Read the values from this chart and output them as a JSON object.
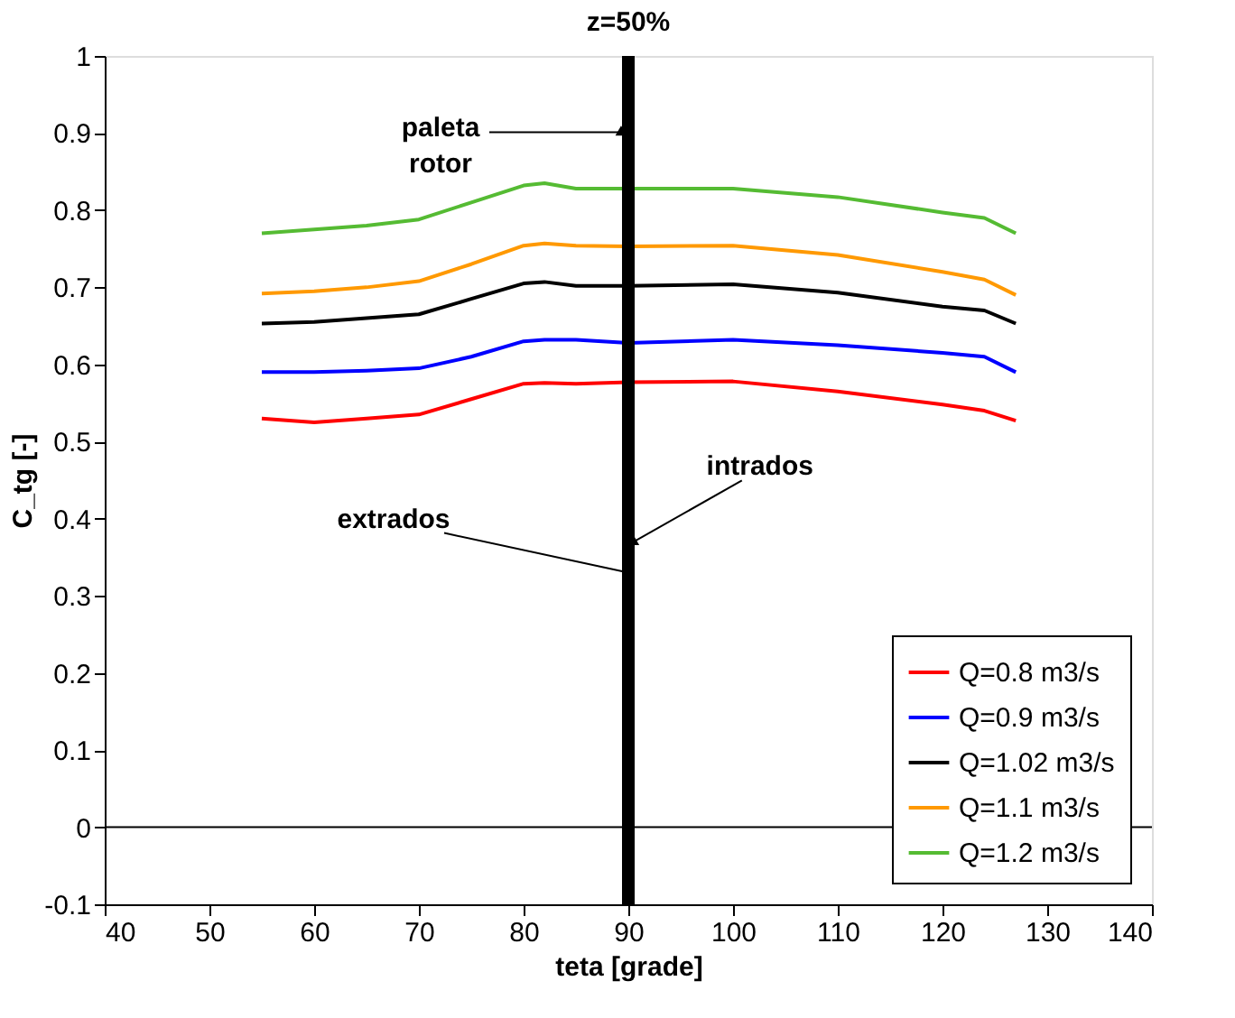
{
  "chart_data": {
    "type": "line",
    "title": "z=50%",
    "xlabel": "teta [grade]",
    "ylabel": "C_tg [-]",
    "xlim": [
      40,
      140
    ],
    "xticks": [
      40,
      50,
      60,
      70,
      80,
      90,
      100,
      110,
      120,
      130,
      140
    ],
    "ylim": [
      -0.1,
      1
    ],
    "yticks": [
      -0.1,
      {
        "value": 0,
        "label": "0"
      },
      0.1,
      0.2,
      0.3,
      0.4,
      0.5,
      0.6,
      0.7,
      0.8,
      0.9,
      {
        "value": 1,
        "label": "1"
      }
    ],
    "grid": false,
    "legend": "bottom right",
    "marker": "none",
    "line_style": "solid",
    "x": [
      55,
      60,
      65,
      70,
      75,
      80,
      82,
      85,
      90,
      100,
      110,
      120,
      124,
      127
    ],
    "series": [
      {
        "name": "Q=0.8 m3/s",
        "color": "#ff0000",
        "values": [
          0.53,
          0.525,
          0.53,
          0.535,
          0.555,
          0.575,
          0.576,
          0.575,
          0.577,
          0.578,
          0.565,
          0.548,
          0.54,
          0.527
        ]
      },
      {
        "name": "Q=0.9 m3/s",
        "color": "#0000ff",
        "values": [
          0.59,
          0.59,
          0.592,
          0.595,
          0.61,
          0.63,
          0.632,
          0.632,
          0.628,
          0.632,
          0.625,
          0.615,
          0.61,
          0.59
        ]
      },
      {
        "name": "Q=1.02 m3/s",
        "color": "#000000",
        "values": [
          0.653,
          0.655,
          0.66,
          0.665,
          0.685,
          0.705,
          0.707,
          0.702,
          0.702,
          0.704,
          0.693,
          0.675,
          0.67,
          0.653
        ]
      },
      {
        "name": "Q=1.1 m3/s",
        "color": "#ff9900",
        "values": [
          0.692,
          0.695,
          0.7,
          0.708,
          0.73,
          0.754,
          0.757,
          0.754,
          0.753,
          0.754,
          0.742,
          0.72,
          0.71,
          0.69
        ]
      },
      {
        "name": "Q=1.2 m3/s",
        "color": "#55bb33",
        "values": [
          0.77,
          0.775,
          0.78,
          0.788,
          0.81,
          0.832,
          0.835,
          0.828,
          0.828,
          0.828,
          0.817,
          0.797,
          0.79,
          0.77
        ]
      }
    ],
    "ref_lines": [
      {
        "axis": "x",
        "value": 90,
        "color": "#000000"
      },
      {
        "axis": "y",
        "value": 0,
        "color": "#000000"
      }
    ],
    "annotations": [
      "paleta rotor",
      {
        "text": "intrados",
        "x": 90.5,
        "y": 0.37
      },
      {
        "text": "extrados",
        "x": 90,
        "y": 0.33
      }
    ]
  }
}
